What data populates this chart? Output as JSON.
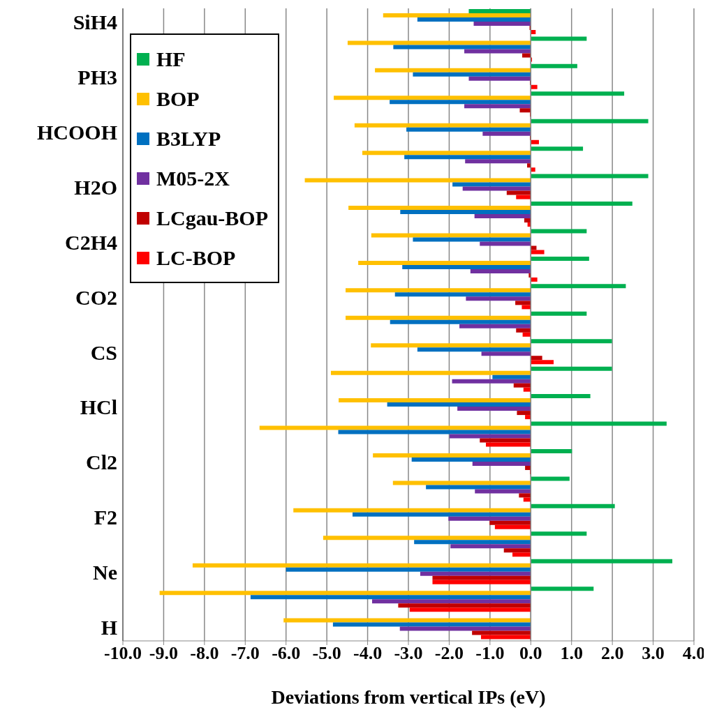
{
  "chart_data": {
    "type": "bar",
    "orientation": "horizontal",
    "xlabel": "Deviations from vertical IPs (eV)",
    "categories": [
      "SiH4",
      null,
      "PH3",
      null,
      "HCOOH",
      null,
      "H2O",
      null,
      "C2H4",
      null,
      "CO2",
      null,
      "CS",
      null,
      "HCl",
      null,
      "Cl2",
      null,
      "F2",
      null,
      "Ne",
      null,
      "H"
    ],
    "series": [
      {
        "name": "HF",
        "color": "#00b050",
        "values": [
          -1.52,
          1.37,
          1.14,
          2.29,
          2.88,
          1.28,
          2.88,
          2.49,
          1.37,
          1.43,
          2.33,
          1.37,
          1.99,
          1.99,
          1.46,
          3.33,
          1.01,
          0.95,
          2.06,
          1.37,
          3.47,
          1.54,
          null
        ]
      },
      {
        "name": "BOP",
        "color": "#ffc000",
        "values": [
          -3.62,
          -4.49,
          -3.82,
          -4.83,
          -4.32,
          -4.13,
          -5.54,
          -4.47,
          -3.91,
          -4.23,
          -4.54,
          -4.54,
          -3.92,
          -4.9,
          -4.71,
          -6.65,
          -3.87,
          -3.38,
          -5.82,
          -5.09,
          -8.29,
          -9.1,
          -6.06
        ]
      },
      {
        "name": "B3LYP",
        "color": "#0070c0",
        "values": [
          -2.78,
          -3.37,
          -2.89,
          -3.46,
          -3.05,
          -3.1,
          -1.92,
          -3.2,
          -2.89,
          -3.15,
          -3.33,
          -3.45,
          -2.78,
          -0.94,
          -3.52,
          -4.72,
          -2.92,
          -2.57,
          -4.37,
          -2.86,
          -6.0,
          -6.87,
          -4.85
        ]
      },
      {
        "name": "M05-2X",
        "color": "#7030a0",
        "values": [
          -1.4,
          -1.63,
          -1.52,
          -1.63,
          -1.18,
          -1.61,
          -1.67,
          -1.38,
          -1.25,
          -1.48,
          -1.59,
          -1.75,
          -1.21,
          -1.93,
          -1.8,
          -1.99,
          -1.43,
          -1.37,
          -2.02,
          -1.97,
          -2.71,
          -3.89,
          -3.21
        ]
      },
      {
        "name": "LCgau-BOP",
        "color": "#c00000",
        "values": [
          -0.03,
          -0.21,
          -0.02,
          -0.27,
          -0.02,
          -0.09,
          -0.59,
          -0.16,
          0.14,
          -0.05,
          -0.38,
          -0.36,
          0.28,
          -0.42,
          -0.34,
          -1.25,
          -0.14,
          -0.29,
          -1.01,
          -0.66,
          -2.41,
          -3.25,
          -1.44
        ]
      },
      {
        "name": "LC-BOP",
        "color": "#ff0000",
        "values": [
          0.12,
          0.03,
          0.16,
          -0.02,
          0.2,
          0.11,
          -0.36,
          -0.08,
          0.33,
          0.16,
          -0.22,
          -0.2,
          0.56,
          -0.18,
          -0.14,
          -1.1,
          -0.02,
          -0.18,
          -0.88,
          -0.45,
          -2.41,
          -2.97,
          -1.22
        ]
      }
    ],
    "xlim": [
      -10,
      4
    ],
    "xticks": [
      {
        "value": -10,
        "label": "-10.0"
      },
      {
        "value": -9,
        "label": "-9.0"
      },
      {
        "value": -8,
        "label": "-8.0"
      },
      {
        "value": -7,
        "label": "-7.0"
      },
      {
        "value": -6,
        "label": "-6.0"
      },
      {
        "value": -5,
        "label": "-5.0"
      },
      {
        "value": -4,
        "label": "-4.0"
      },
      {
        "value": -3,
        "label": "-3.0"
      },
      {
        "value": -2,
        "label": "-2.0"
      },
      {
        "value": -1,
        "label": "-1.0"
      },
      {
        "value": 0,
        "label": "0.0"
      },
      {
        "value": 1,
        "label": "1.0"
      },
      {
        "value": 2,
        "label": "2.0"
      },
      {
        "value": 3,
        "label": "3.0"
      },
      {
        "value": 4,
        "label": "4.0"
      }
    ],
    "grid": "x",
    "legend": "top left"
  }
}
